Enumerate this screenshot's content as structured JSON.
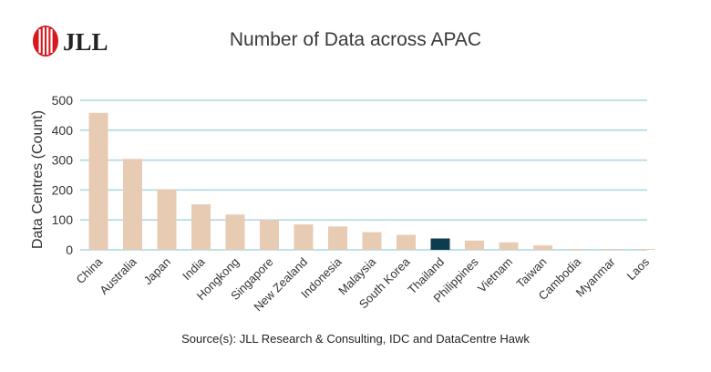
{
  "brand": {
    "logo_text": "JLL",
    "logo_color": "#d7191e"
  },
  "colors": {
    "bar": "#e8cbb3",
    "highlight": "#0d3b50",
    "grid": "#a9d7df",
    "axis_text": "#333333"
  },
  "chart_data": {
    "type": "bar",
    "title": "Number of Data across APAC",
    "xlabel": "",
    "ylabel": "Data Centres (Count)",
    "ylim": [
      0,
      500
    ],
    "yticks": [
      0,
      100,
      200,
      300,
      400,
      500
    ],
    "grid": true,
    "categories": [
      "China",
      "Australia",
      "Japan",
      "India",
      "Hongkong",
      "Singapore",
      "New Zealand",
      "Indonesia",
      "Malaysia",
      "South Korea",
      "Thailand",
      "Philippines",
      "Vietnam",
      "Taiwan",
      "Cambodia",
      "Myanmar",
      "Laos"
    ],
    "values": [
      458,
      304,
      202,
      152,
      118,
      100,
      85,
      78,
      59,
      50,
      38,
      31,
      25,
      15,
      3,
      3,
      3
    ],
    "highlight_category": "Thailand"
  },
  "source": "Source(s): JLL Research & Consulting, IDC and DataCentre Hawk"
}
